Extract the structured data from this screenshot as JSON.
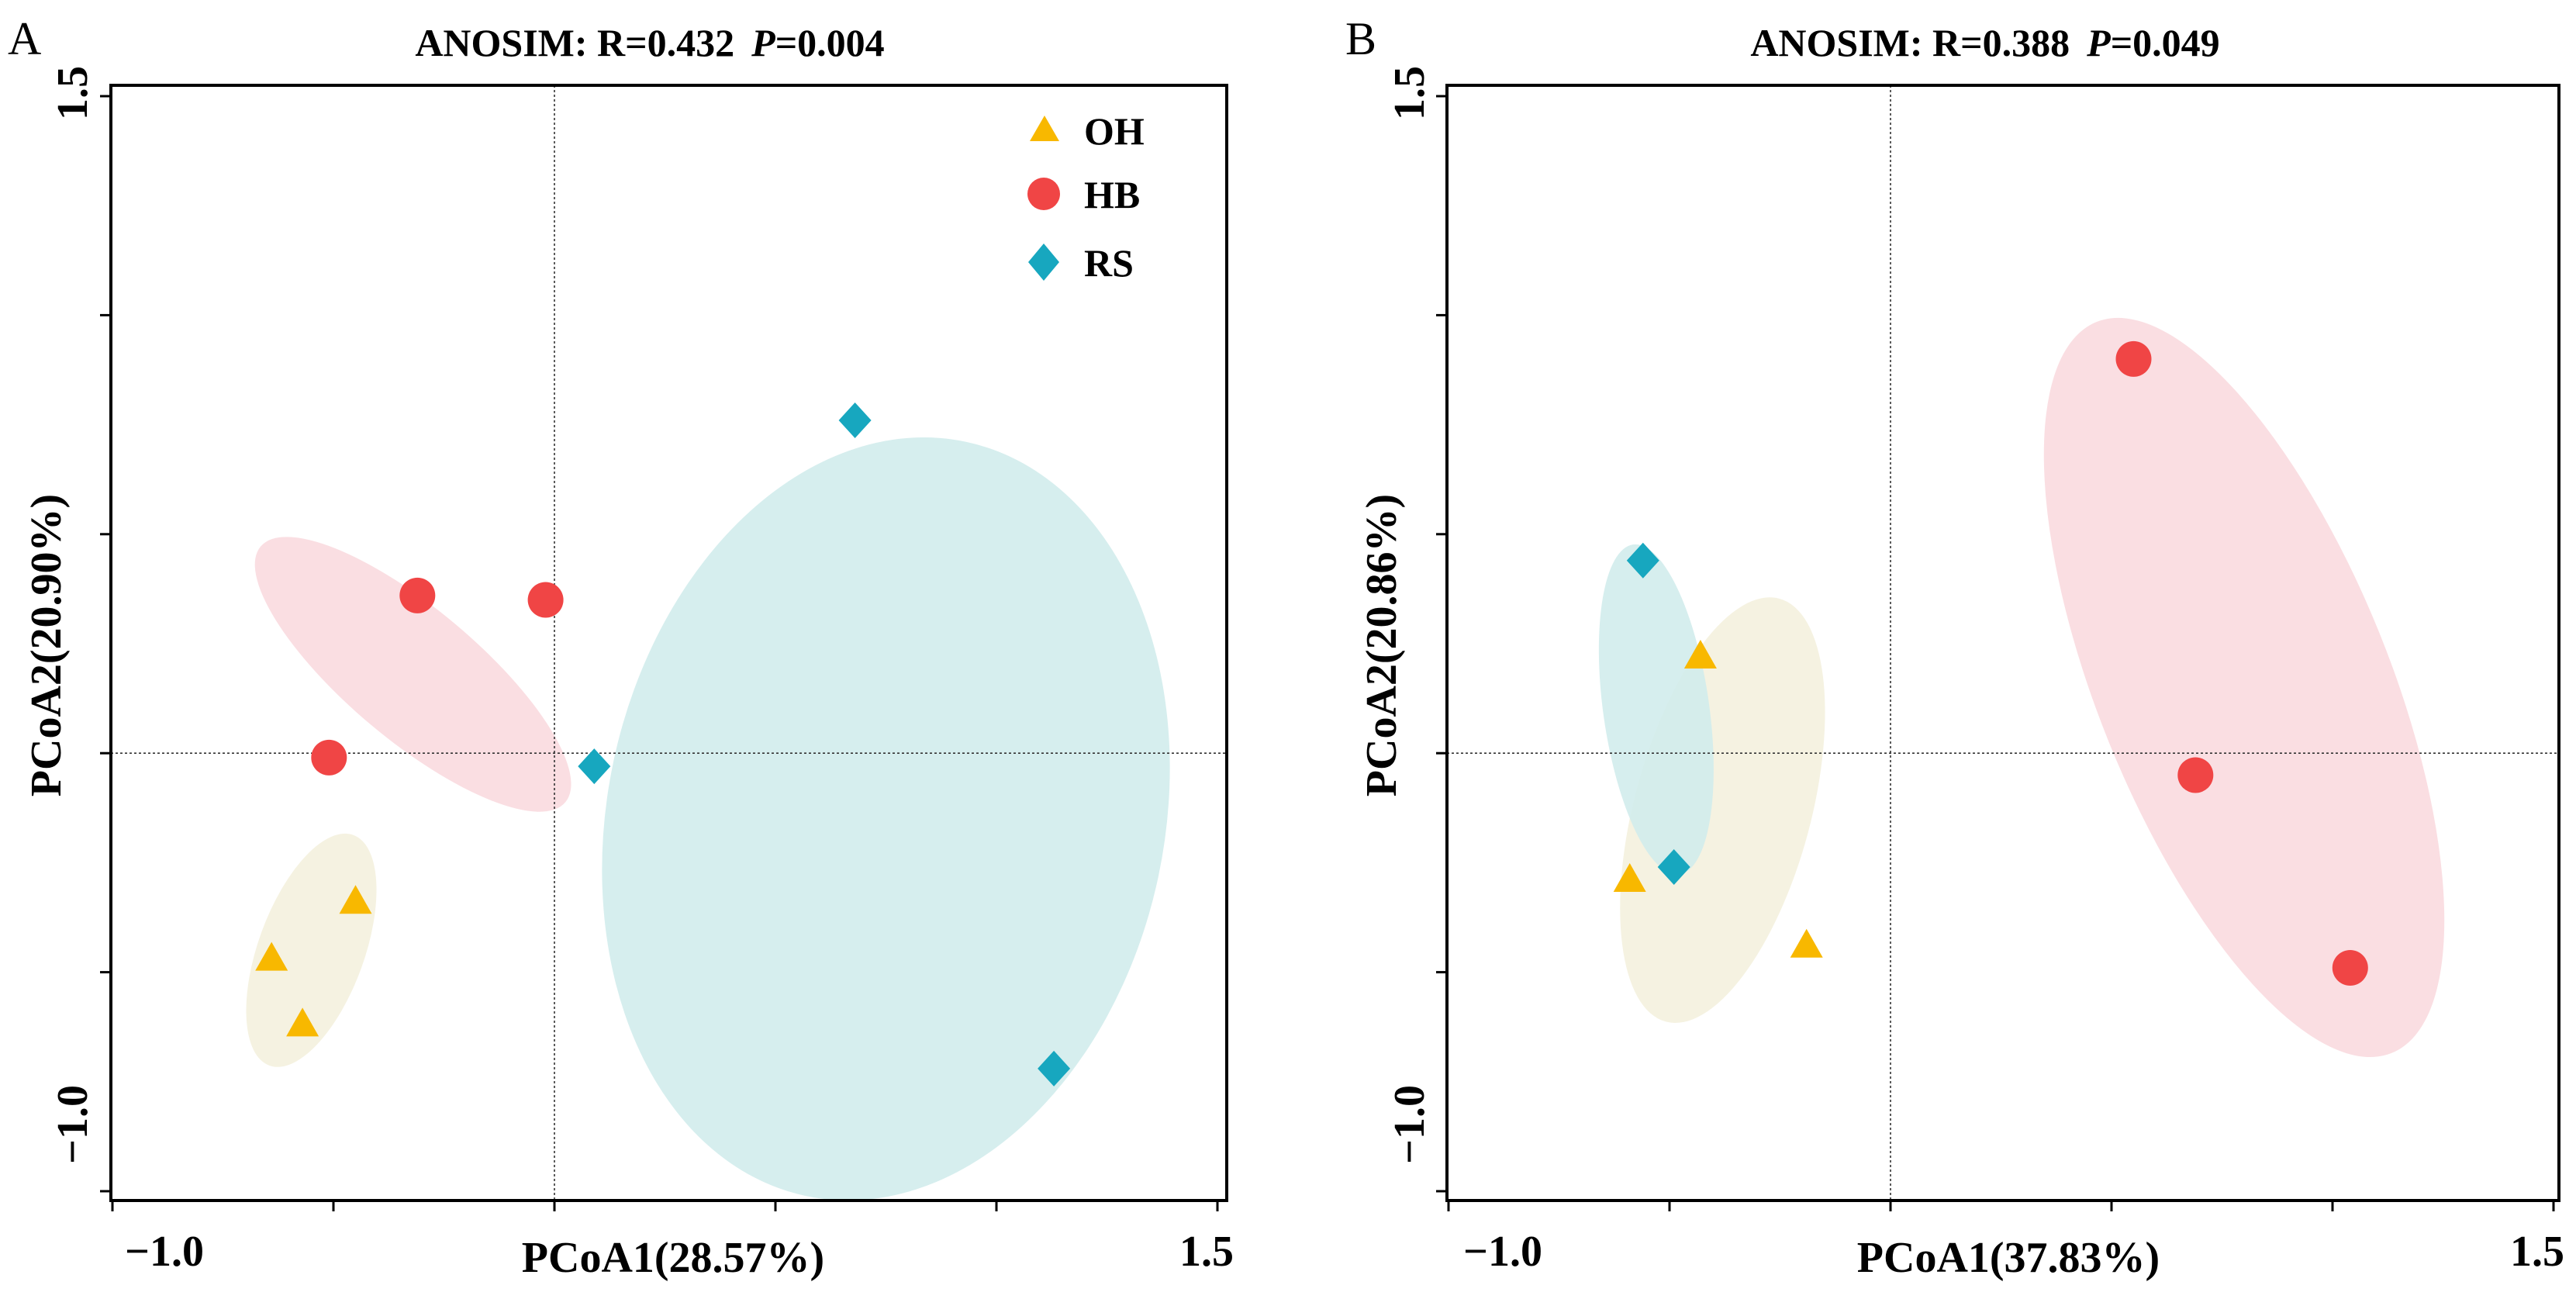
{
  "colors": {
    "OH": "#F8B800",
    "HB": "#F04545",
    "RS": "#17A7BF",
    "ellipse_OH": "#F4F1DE",
    "ellipse_HB": "#F9DADF",
    "ellipse_RS": "#D2ECEC"
  },
  "chart_data": [
    {
      "type": "scatter",
      "panel_label": "A",
      "title": {
        "prefix": "ANOSIM: R=0.432",
        "p_symbol": "P",
        "p_value": "=0.004"
      },
      "xlabel": "PCoA1(28.57%)",
      "ylabel": "PCoA2(20.90%)",
      "xlim": [
        -1.0,
        1.5
      ],
      "ylim": [
        -1.0,
        1.5
      ],
      "xticks": [
        -1.0,
        -0.5,
        0.0,
        0.5,
        1.0,
        1.5
      ],
      "yticks": [
        -1.0,
        -0.5,
        0.0,
        0.5,
        1.0,
        1.5
      ],
      "xtick_labels": [
        "−1.0",
        "1.5"
      ],
      "ytick_labels": [
        "−1.0",
        "1.5"
      ],
      "reference_lines": {
        "x": 0.0,
        "y": 0.0
      },
      "legend": {
        "entries": [
          "OH",
          "HB",
          "RS"
        ],
        "position": "top-right"
      },
      "series": [
        {
          "name": "OH",
          "marker": "triangle",
          "points": [
            [
              -0.45,
              -0.34
            ],
            [
              -0.64,
              -0.47
            ],
            [
              -0.57,
              -0.62
            ]
          ]
        },
        {
          "name": "HB",
          "marker": "circle",
          "points": [
            [
              -0.31,
              0.36
            ],
            [
              -0.02,
              0.35
            ],
            [
              -0.51,
              -0.01
            ]
          ]
        },
        {
          "name": "RS",
          "marker": "diamond",
          "points": [
            [
              0.68,
              0.76
            ],
            [
              0.09,
              -0.03
            ],
            [
              1.13,
              -0.72
            ]
          ]
        }
      ],
      "ellipses": [
        {
          "group": "OH",
          "center": [
            -0.55,
            -0.45
          ],
          "semi_axes": [
            0.12,
            0.28
          ],
          "angle_deg": 20
        },
        {
          "group": "HB",
          "center": [
            -0.32,
            0.18
          ],
          "semi_axes": [
            0.45,
            0.15
          ],
          "angle_deg": 40
        },
        {
          "group": "RS",
          "center": [
            0.75,
            -0.15
          ],
          "semi_axes": [
            0.63,
            0.88
          ],
          "angle_deg": 12
        }
      ]
    },
    {
      "type": "scatter",
      "panel_label": "B",
      "title": {
        "prefix": "ANOSIM: R=0.388",
        "p_symbol": "P",
        "p_value": "=0.049"
      },
      "xlabel": "PCoA1(37.83%)",
      "ylabel": "PCoA2(20.86%)",
      "xlim": [
        -1.0,
        1.5
      ],
      "ylim": [
        -1.0,
        1.5
      ],
      "xticks": [
        -1.0,
        -0.5,
        0.0,
        0.5,
        1.0,
        1.5
      ],
      "yticks": [
        -1.0,
        -0.5,
        0.0,
        0.5,
        1.0,
        1.5
      ],
      "xtick_labels": [
        "−1.0",
        "1.5"
      ],
      "ytick_labels": [
        "−1.0",
        "1.5"
      ],
      "reference_lines": {
        "x": 0.0,
        "y": 0.0
      },
      "series": [
        {
          "name": "OH",
          "marker": "triangle",
          "points": [
            [
              -0.43,
              0.22
            ],
            [
              -0.59,
              -0.29
            ],
            [
              -0.19,
              -0.44
            ]
          ]
        },
        {
          "name": "HB",
          "marker": "circle",
          "points": [
            [
              0.55,
              0.9
            ],
            [
              0.69,
              -0.05
            ],
            [
              1.04,
              -0.49
            ]
          ]
        },
        {
          "name": "RS",
          "marker": "diamond",
          "points": [
            [
              -0.56,
              0.44
            ],
            [
              -0.49,
              -0.26
            ]
          ]
        }
      ],
      "ellipses": [
        {
          "group": "OH",
          "center": [
            -0.38,
            -0.13
          ],
          "semi_axes": [
            0.2,
            0.5
          ],
          "angle_deg": 15
        },
        {
          "group": "HB",
          "center": [
            0.8,
            0.15
          ],
          "semi_axes": [
            0.33,
            0.9
          ],
          "angle_deg": -22
        },
        {
          "group": "RS",
          "center": [
            -0.53,
            0.1
          ],
          "semi_axes": [
            0.12,
            0.38
          ],
          "angle_deg": -8
        }
      ]
    }
  ]
}
